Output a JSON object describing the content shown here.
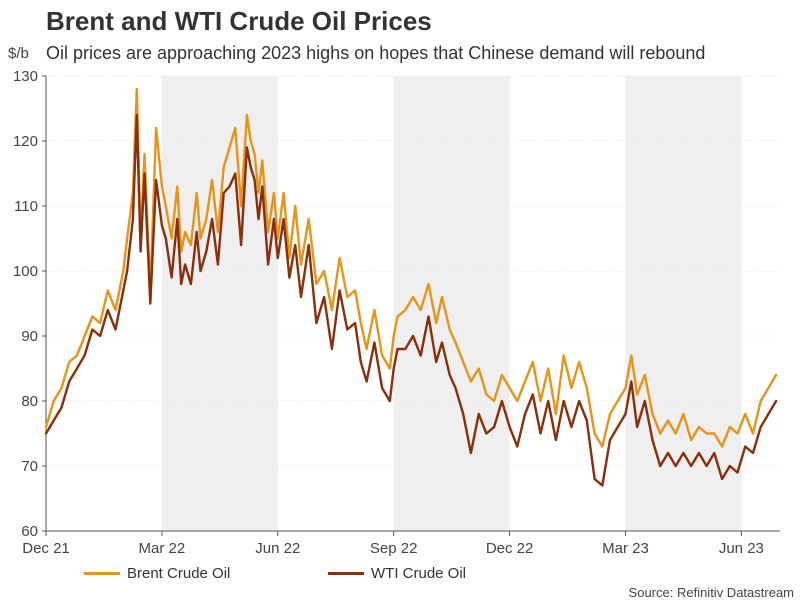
{
  "header": {
    "title": "Brent and WTI Crude Oil Prices",
    "subtitle": "Oil prices are approaching 2023 highs on hopes that Chinese demand will rebound",
    "ylabel": "$/b"
  },
  "footer": {
    "source": "Source: Refinitiv Datastream"
  },
  "chart_data": {
    "type": "line",
    "title": "Brent and WTI Crude Oil Prices",
    "subtitle": "Oil prices are approaching 2023 highs on hopes that Chinese demand will rebound",
    "xlabel": "",
    "ylabel": "$/b",
    "ylim": [
      60,
      130
    ],
    "xlim": [
      0,
      19
    ],
    "yticks": [
      60,
      70,
      80,
      90,
      100,
      110,
      120,
      130
    ],
    "xticks": [
      {
        "x": 0,
        "label": "Dec 21"
      },
      {
        "x": 3,
        "label": "Mar 22"
      },
      {
        "x": 6,
        "label": "Jun 22"
      },
      {
        "x": 9,
        "label": "Sep 22"
      },
      {
        "x": 12,
        "label": "Dec 22"
      },
      {
        "x": 15,
        "label": "Mar 23"
      },
      {
        "x": 18,
        "label": "Jun 23"
      }
    ],
    "shaded_bands": [
      [
        3,
        6
      ],
      [
        9,
        12
      ],
      [
        15,
        18
      ]
    ],
    "legend_position": "bottom",
    "series": [
      {
        "name": "Brent Crude Oil",
        "color": "#E8941A",
        "x": [
          0,
          0.2,
          0.4,
          0.6,
          0.8,
          1.0,
          1.2,
          1.4,
          1.6,
          1.8,
          2.0,
          2.1,
          2.25,
          2.35,
          2.45,
          2.55,
          2.7,
          2.85,
          3.0,
          3.1,
          3.25,
          3.4,
          3.5,
          3.6,
          3.75,
          3.9,
          4.0,
          4.15,
          4.3,
          4.45,
          4.6,
          4.75,
          4.9,
          5.05,
          5.2,
          5.3,
          5.4,
          5.5,
          5.6,
          5.75,
          5.9,
          6.0,
          6.15,
          6.3,
          6.45,
          6.6,
          6.8,
          7.0,
          7.2,
          7.4,
          7.6,
          7.8,
          8.0,
          8.15,
          8.3,
          8.5,
          8.7,
          8.9,
          9.0,
          9.1,
          9.3,
          9.5,
          9.7,
          9.9,
          10.1,
          10.25,
          10.45,
          10.6,
          10.8,
          11.0,
          11.2,
          11.4,
          11.6,
          11.8,
          12.0,
          12.2,
          12.4,
          12.6,
          12.8,
          13.0,
          13.2,
          13.4,
          13.6,
          13.8,
          14.0,
          14.2,
          14.4,
          14.6,
          14.8,
          15.0,
          15.15,
          15.3,
          15.5,
          15.7,
          15.9,
          16.1,
          16.3,
          16.5,
          16.7,
          16.9,
          17.1,
          17.3,
          17.5,
          17.7,
          17.9,
          18.1,
          18.3,
          18.5,
          18.7,
          18.9
        ],
        "values": [
          76,
          80,
          82,
          86,
          87,
          90,
          93,
          92,
          97,
          94,
          100,
          105,
          112,
          128,
          105,
          118,
          97,
          122,
          113,
          110,
          105,
          113,
          103,
          106,
          104,
          112,
          105,
          108,
          114,
          106,
          116,
          119,
          122,
          110,
          124,
          120,
          118,
          112,
          117,
          106,
          112,
          105,
          112,
          102,
          110,
          101,
          108,
          98,
          100,
          94,
          102,
          96,
          97,
          92,
          88,
          94,
          87,
          85,
          90,
          93,
          94,
          96,
          94,
          98,
          92,
          96,
          91,
          89,
          86,
          83,
          85,
          81,
          80,
          84,
          82,
          80,
          83,
          86,
          80,
          85,
          78,
          87,
          82,
          86,
          82,
          75,
          73,
          78,
          80,
          82,
          87,
          81,
          84,
          78,
          75,
          77,
          75,
          78,
          74,
          76,
          75,
          75,
          73,
          76,
          75,
          78,
          75,
          80,
          82,
          84
        ]
      },
      {
        "name": "WTI Crude Oil",
        "color": "#8B2E0A",
        "x": [
          0,
          0.2,
          0.4,
          0.6,
          0.8,
          1.0,
          1.2,
          1.4,
          1.6,
          1.8,
          2.0,
          2.1,
          2.25,
          2.35,
          2.45,
          2.55,
          2.7,
          2.85,
          3.0,
          3.1,
          3.25,
          3.4,
          3.5,
          3.6,
          3.75,
          3.9,
          4.0,
          4.15,
          4.3,
          4.45,
          4.6,
          4.75,
          4.9,
          5.05,
          5.2,
          5.3,
          5.4,
          5.5,
          5.6,
          5.75,
          5.9,
          6.0,
          6.15,
          6.3,
          6.45,
          6.6,
          6.8,
          7.0,
          7.2,
          7.4,
          7.6,
          7.8,
          8.0,
          8.15,
          8.3,
          8.5,
          8.7,
          8.9,
          9.0,
          9.1,
          9.3,
          9.5,
          9.7,
          9.9,
          10.1,
          10.25,
          10.45,
          10.6,
          10.8,
          11.0,
          11.2,
          11.4,
          11.6,
          11.8,
          12.0,
          12.2,
          12.4,
          12.6,
          12.8,
          13.0,
          13.2,
          13.4,
          13.6,
          13.8,
          14.0,
          14.2,
          14.4,
          14.6,
          14.8,
          15.0,
          15.15,
          15.3,
          15.5,
          15.7,
          15.9,
          16.1,
          16.3,
          16.5,
          16.7,
          16.9,
          17.1,
          17.3,
          17.5,
          17.7,
          17.9,
          18.1,
          18.3,
          18.5,
          18.7,
          18.9
        ],
        "values": [
          75,
          77,
          79,
          83,
          85,
          87,
          91,
          90,
          94,
          91,
          97,
          100,
          108,
          124,
          103,
          115,
          95,
          114,
          107,
          105,
          99,
          108,
          98,
          101,
          98,
          106,
          100,
          103,
          108,
          101,
          112,
          113,
          115,
          104,
          119,
          116,
          114,
          108,
          113,
          101,
          108,
          102,
          108,
          99,
          104,
          96,
          104,
          92,
          96,
          88,
          97,
          91,
          92,
          86,
          83,
          89,
          82,
          80,
          85,
          88,
          88,
          90,
          87,
          93,
          86,
          89,
          84,
          82,
          78,
          72,
          78,
          75,
          76,
          80,
          76,
          73,
          78,
          81,
          75,
          80,
          74,
          80,
          76,
          80,
          77,
          68,
          67,
          74,
          76,
          78,
          83,
          76,
          80,
          74,
          70,
          72,
          70,
          72,
          70,
          72,
          70,
          72,
          68,
          70,
          69,
          73,
          72,
          76,
          78,
          80
        ]
      }
    ]
  }
}
